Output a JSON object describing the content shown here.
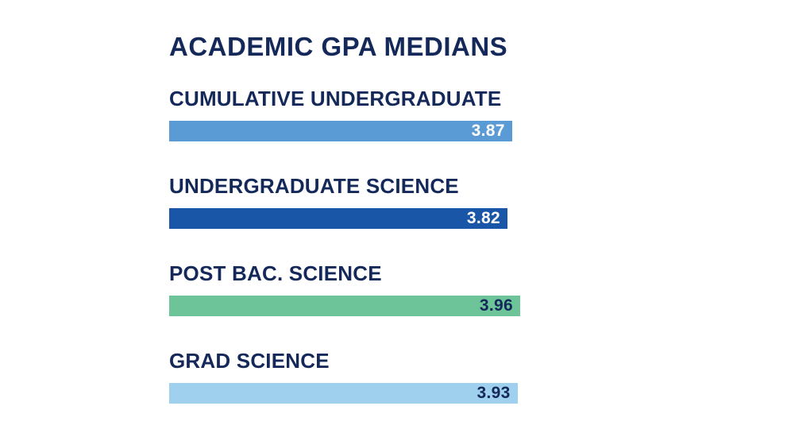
{
  "chart_data": {
    "type": "bar",
    "orientation": "horizontal",
    "title": "ACADEMIC GPA MEDIANS",
    "categories": [
      "CUMULATIVE UNDERGRADUATE",
      "UNDERGRADUATE SCIENCE",
      "POST BAC. SCIENCE",
      "GRAD SCIENCE"
    ],
    "values": [
      3.87,
      3.82,
      3.96,
      3.93
    ],
    "value_labels": [
      "3.87",
      "3.82",
      "3.96",
      "3.93"
    ],
    "bar_colors": [
      "#5b9bd5",
      "#1a56a8",
      "#6cc498",
      "#9fd1ee"
    ],
    "value_label_colors": [
      "#ffffff",
      "#ffffff",
      "#14285a",
      "#14285a"
    ],
    "grid": false,
    "legend": "none"
  }
}
